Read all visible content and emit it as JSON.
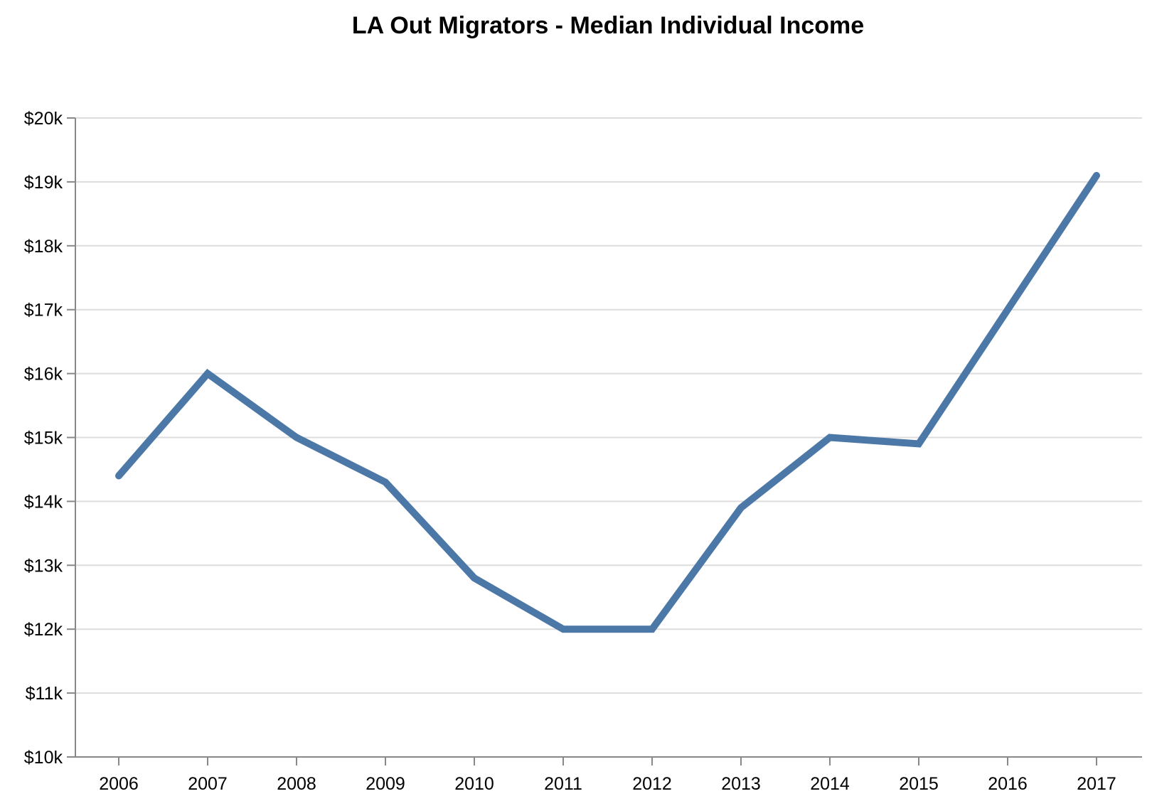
{
  "chart_data": {
    "type": "line",
    "title": "LA Out Migrators - Median Individual Income",
    "xlabel": "",
    "ylabel": "",
    "x": [
      "2006",
      "2007",
      "2008",
      "2009",
      "2010",
      "2011",
      "2012",
      "2013",
      "2014",
      "2015",
      "2016",
      "2017"
    ],
    "series": [
      {
        "values": [
          14400,
          16000,
          15000,
          14300,
          12800,
          12000,
          12000,
          13900,
          15000,
          14900,
          17000,
          19100
        ],
        "color": "#4c78a8"
      }
    ],
    "ylim": [
      10000,
      20000
    ],
    "yticks": [
      10000,
      11000,
      12000,
      13000,
      14000,
      15000,
      16000,
      17000,
      18000,
      19000,
      20000
    ],
    "ytick_labels": [
      "$10k",
      "$11k",
      "$12k",
      "$13k",
      "$14k",
      "$15k",
      "$16k",
      "$17k",
      "$18k",
      "$19k",
      "$20k"
    ],
    "grid": true,
    "legend": "none"
  }
}
